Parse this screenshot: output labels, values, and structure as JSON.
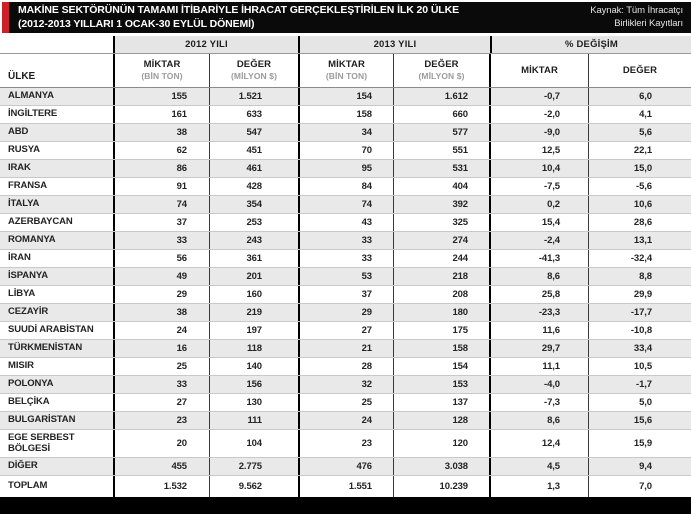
{
  "header": {
    "title_line1": "MAKİNE SEKTÖRÜNÜN TAMAMI İTİBARİYLE İHRACAT GERÇEKLEŞTİRİLEN İLK 20 ÜLKE",
    "title_line2": "(2012-2013 YILLARI 1 OCAK-30 EYLÜL DÖNEMİ)",
    "source_line1": "Kaynak: Tüm İhracatçı",
    "source_line2": "Birlikleri Kayıtları",
    "accent_color": "#ce2127",
    "bar_color": "#0a0a0a"
  },
  "table": {
    "country_header": "ÜLKE",
    "group_headers": {
      "y2012": "2012 YILI",
      "y2013": "2013 YILI",
      "change": "% DEĞİŞİM"
    },
    "sub_headers": {
      "miktar": "MİKTAR",
      "deger": "DEĞER",
      "miktar_unit": "(BİN TON)",
      "deger_unit": "(MİLYON $)"
    },
    "rows": [
      {
        "ulke": "ALMANYA",
        "vals": [
          "155",
          "1.521",
          "154",
          "1.612",
          "-0,7",
          "6,0"
        ]
      },
      {
        "ulke": "İNGİLTERE",
        "vals": [
          "161",
          "633",
          "158",
          "660",
          "-2,0",
          "4,1"
        ]
      },
      {
        "ulke": "ABD",
        "vals": [
          "38",
          "547",
          "34",
          "577",
          "-9,0",
          "5,6"
        ]
      },
      {
        "ulke": "RUSYA",
        "vals": [
          "62",
          "451",
          "70",
          "551",
          "12,5",
          "22,1"
        ]
      },
      {
        "ulke": "IRAK",
        "vals": [
          "86",
          "461",
          "95",
          "531",
          "10,4",
          "15,0"
        ]
      },
      {
        "ulke": "FRANSA",
        "vals": [
          "91",
          "428",
          "84",
          "404",
          "-7,5",
          "-5,6"
        ]
      },
      {
        "ulke": "İTALYA",
        "vals": [
          "74",
          "354",
          "74",
          "392",
          "0,2",
          "10,6"
        ]
      },
      {
        "ulke": "AZERBAYCAN",
        "vals": [
          "37",
          "253",
          "43",
          "325",
          "15,4",
          "28,6"
        ]
      },
      {
        "ulke": "ROMANYA",
        "vals": [
          "33",
          "243",
          "33",
          "274",
          "-2,4",
          "13,1"
        ]
      },
      {
        "ulke": "İRAN",
        "vals": [
          "56",
          "361",
          "33",
          "244",
          "-41,3",
          "-32,4"
        ]
      },
      {
        "ulke": "İSPANYA",
        "vals": [
          "49",
          "201",
          "53",
          "218",
          "8,6",
          "8,8"
        ]
      },
      {
        "ulke": "LİBYA",
        "vals": [
          "29",
          "160",
          "37",
          "208",
          "25,8",
          "29,9"
        ]
      },
      {
        "ulke": "CEZAYİR",
        "vals": [
          "38",
          "219",
          "29",
          "180",
          "-23,3",
          "-17,7"
        ]
      },
      {
        "ulke": "SUUDİ ARABİSTAN",
        "vals": [
          "24",
          "197",
          "27",
          "175",
          "11,6",
          "-10,8"
        ]
      },
      {
        "ulke": "TÜRKMENİSTAN",
        "vals": [
          "16",
          "118",
          "21",
          "158",
          "29,7",
          "33,4"
        ]
      },
      {
        "ulke": "MISIR",
        "vals": [
          "25",
          "140",
          "28",
          "154",
          "11,1",
          "10,5"
        ]
      },
      {
        "ulke": "POLONYA",
        "vals": [
          "33",
          "156",
          "32",
          "153",
          "-4,0",
          "-1,7"
        ]
      },
      {
        "ulke": "BELÇİKA",
        "vals": [
          "27",
          "130",
          "25",
          "137",
          "-7,3",
          "5,0"
        ]
      },
      {
        "ulke": "BULGARİSTAN",
        "vals": [
          "23",
          "111",
          "24",
          "128",
          "8,6",
          "15,6"
        ]
      },
      {
        "ulke": "EGE SERBEST BÖLGESİ",
        "vals": [
          "20",
          "104",
          "23",
          "120",
          "12,4",
          "15,9"
        ],
        "tall": true
      },
      {
        "ulke": "DİĞER",
        "vals": [
          "455",
          "2.775",
          "476",
          "3.038",
          "4,5",
          "9,4"
        ]
      },
      {
        "ulke": "TOPLAM",
        "vals": [
          "1.532",
          "9.562",
          "1.551",
          "10.239",
          "1,3",
          "7,0"
        ],
        "total": true
      }
    ]
  }
}
